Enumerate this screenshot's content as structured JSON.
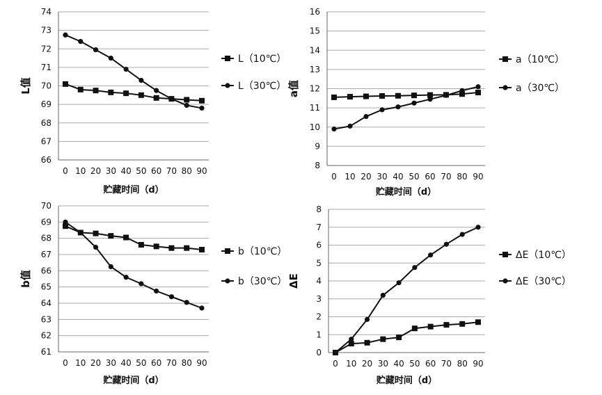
{
  "chart_data": [
    {
      "type": "line",
      "title": "",
      "xlabel": "贮藏时间（d）",
      "ylabel": "L值",
      "x": [
        0,
        10,
        20,
        30,
        40,
        50,
        60,
        70,
        80,
        90
      ],
      "xlim": [
        0,
        90
      ],
      "ylim": [
        66,
        74
      ],
      "yticks": [
        66,
        67,
        68,
        69,
        70,
        71,
        72,
        73,
        74
      ],
      "grid": true,
      "legend": "right",
      "series": [
        {
          "name": "L（10℃）",
          "marker": "square",
          "values": [
            70.1,
            69.8,
            69.75,
            69.65,
            69.6,
            69.5,
            69.35,
            69.3,
            69.25,
            69.2
          ]
        },
        {
          "name": "L（30℃）",
          "marker": "circle",
          "values": [
            72.75,
            72.4,
            71.95,
            71.5,
            70.9,
            70.3,
            69.75,
            69.3,
            68.95,
            68.8
          ]
        }
      ]
    },
    {
      "type": "line",
      "title": "",
      "xlabel": "贮藏时间（d）",
      "ylabel": "a值",
      "x": [
        0,
        10,
        20,
        30,
        40,
        50,
        60,
        70,
        80,
        90
      ],
      "xlim": [
        0,
        90
      ],
      "ylim": [
        8,
        16
      ],
      "yticks": [
        8,
        9,
        10,
        11,
        12,
        13,
        14,
        15,
        16
      ],
      "grid": true,
      "legend": "right",
      "series": [
        {
          "name": "a（10℃）",
          "marker": "square",
          "values": [
            11.55,
            11.58,
            11.6,
            11.62,
            11.63,
            11.65,
            11.67,
            11.68,
            11.72,
            11.8
          ]
        },
        {
          "name": "a（30℃）",
          "marker": "circle",
          "values": [
            9.9,
            10.05,
            10.55,
            10.9,
            11.05,
            11.25,
            11.45,
            11.65,
            11.9,
            12.1
          ]
        }
      ]
    },
    {
      "type": "line",
      "title": "",
      "xlabel": "贮藏时间（d）",
      "ylabel": "b值",
      "x": [
        0,
        10,
        20,
        30,
        40,
        50,
        60,
        70,
        80,
        90
      ],
      "xlim": [
        0,
        90
      ],
      "ylim": [
        61,
        70
      ],
      "yticks": [
        61,
        62,
        63,
        64,
        65,
        66,
        67,
        68,
        69,
        70
      ],
      "grid": true,
      "legend": "right",
      "series": [
        {
          "name": "b（10℃）",
          "marker": "square",
          "values": [
            68.75,
            68.35,
            68.3,
            68.15,
            68.05,
            67.6,
            67.5,
            67.4,
            67.4,
            67.3
          ]
        },
        {
          "name": "b（30℃）",
          "marker": "circle",
          "values": [
            69.0,
            68.35,
            67.45,
            66.25,
            65.6,
            65.2,
            64.75,
            64.4,
            64.05,
            63.7
          ]
        }
      ]
    },
    {
      "type": "line",
      "title": "",
      "xlabel": "贮藏时间（d）",
      "ylabel": "ΔE",
      "x": [
        0,
        10,
        20,
        30,
        40,
        50,
        60,
        70,
        80,
        90
      ],
      "xlim": [
        0,
        90
      ],
      "ylim": [
        0,
        8
      ],
      "yticks": [
        0,
        1,
        2,
        3,
        4,
        5,
        6,
        7,
        8
      ],
      "grid": true,
      "legend": "right",
      "series": [
        {
          "name": "ΔE（10℃）",
          "marker": "square",
          "values": [
            0,
            0.5,
            0.55,
            0.75,
            0.85,
            1.35,
            1.45,
            1.55,
            1.6,
            1.7
          ]
        },
        {
          "name": "ΔE（30℃）",
          "marker": "circle",
          "values": [
            0,
            0.75,
            1.85,
            3.2,
            3.9,
            4.75,
            5.45,
            6.05,
            6.6,
            7.0
          ]
        }
      ]
    }
  ],
  "style": {
    "line_color": "#111111",
    "grid_color": "#aaaaaa",
    "background": "#ffffff"
  }
}
